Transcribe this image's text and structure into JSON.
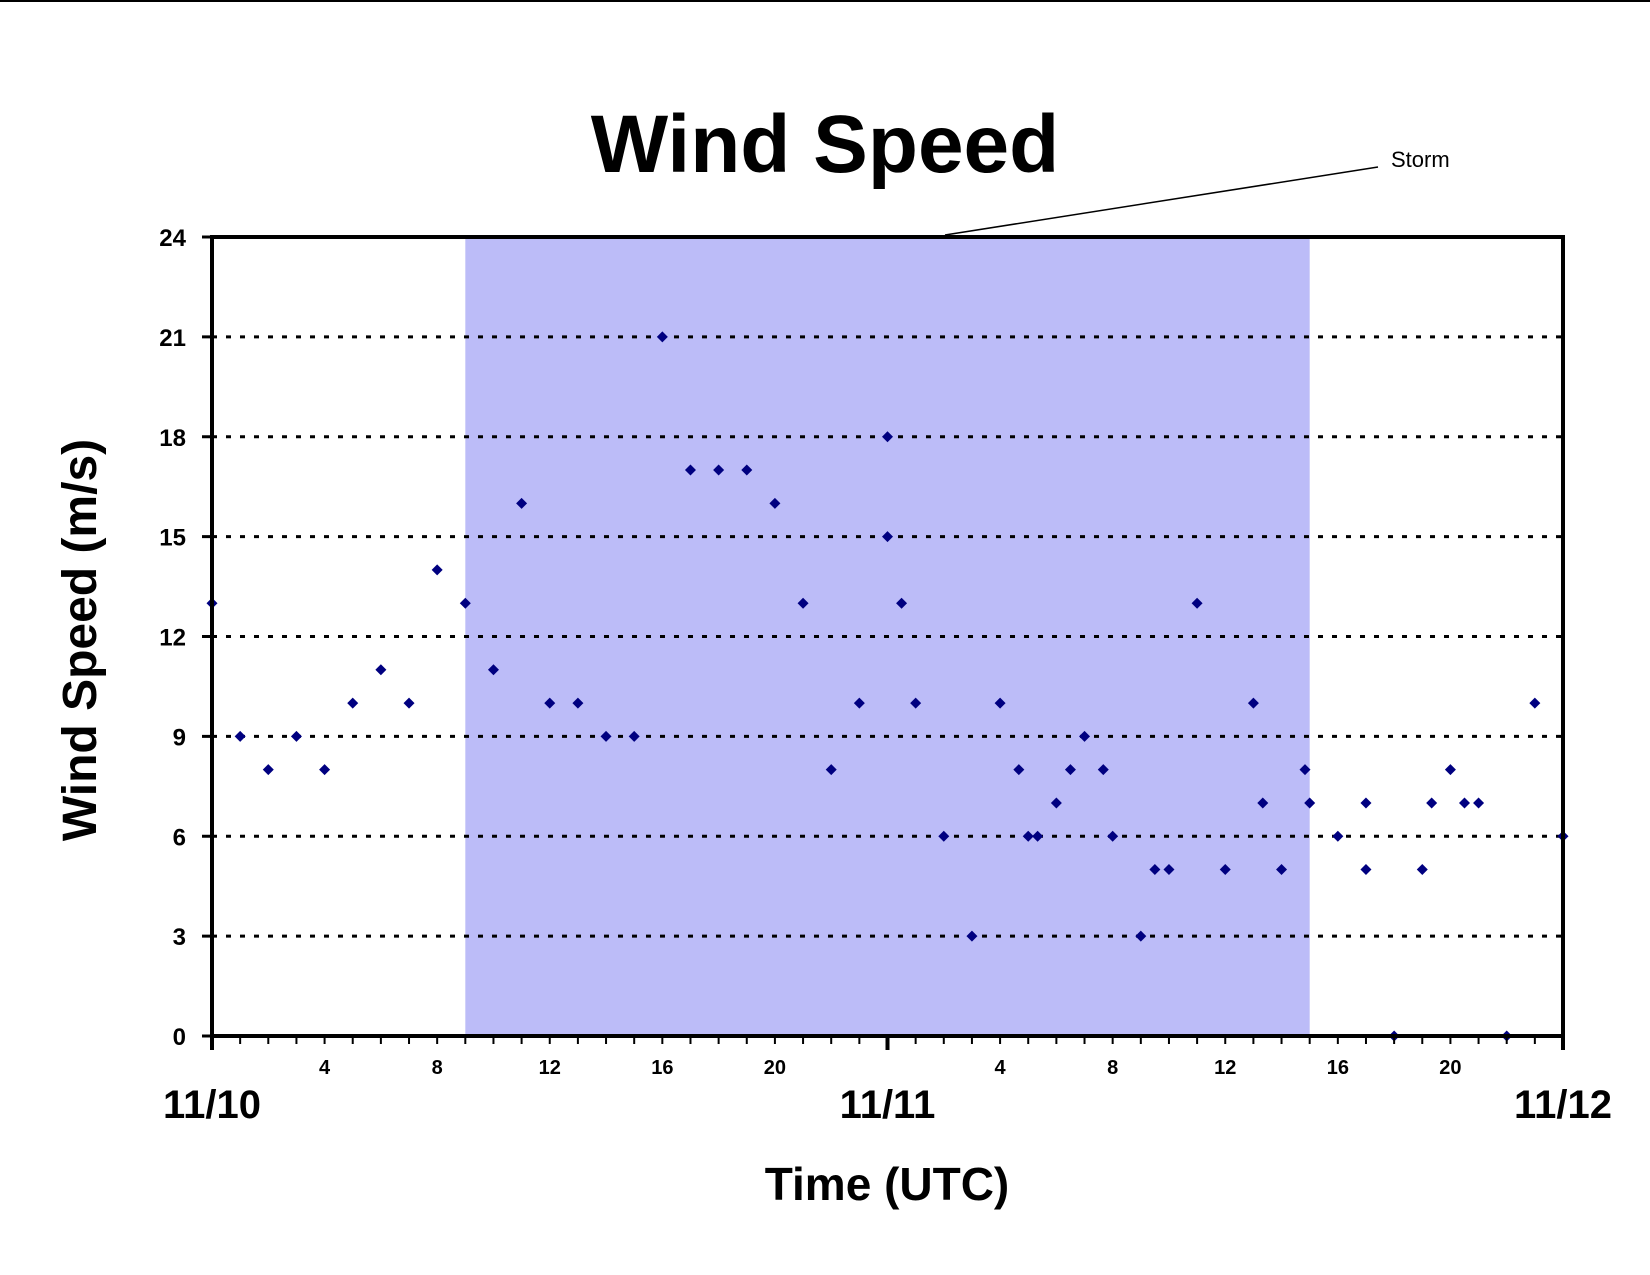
{
  "chart_data": {
    "type": "scatter",
    "title": "Wind Speed",
    "xlabel": "Time (UTC)",
    "ylabel": "Wind Speed (m/s)",
    "ylim": [
      0,
      24
    ],
    "yticks": [
      0,
      3,
      6,
      9,
      12,
      15,
      18,
      21,
      24
    ],
    "xlim": [
      "11/10 00:00",
      "11/12 00:00"
    ],
    "xtick_hours": [
      "4",
      "8",
      "12",
      "16",
      "20",
      "4",
      "8",
      "12",
      "16",
      "20"
    ],
    "day_labels": [
      "11/10",
      "11/11",
      "11/12"
    ],
    "grid": "horizontal dotted",
    "marker_color": "#000080",
    "annotation": {
      "text": "Storm",
      "start": "11/10 09:00",
      "end": "11/11 15:00",
      "color": "#bcbcf8"
    },
    "series": [
      {
        "points": [
          [
            "11/10 00:00",
            13
          ],
          [
            "11/10 01:00",
            9
          ],
          [
            "11/10 02:00",
            8
          ],
          [
            "11/10 03:00",
            9
          ],
          [
            "11/10 04:00",
            8
          ],
          [
            "11/10 05:00",
            10
          ],
          [
            "11/10 06:00",
            11
          ],
          [
            "11/10 07:00",
            10
          ],
          [
            "11/10 08:00",
            14
          ],
          [
            "11/10 09:00",
            13
          ],
          [
            "11/10 10:00",
            11
          ],
          [
            "11/10 11:00",
            16
          ],
          [
            "11/10 12:00",
            10
          ],
          [
            "11/10 13:00",
            10
          ],
          [
            "11/10 14:00",
            9
          ],
          [
            "11/10 15:00",
            9
          ],
          [
            "11/10 16:00",
            21
          ],
          [
            "11/10 17:00",
            17
          ],
          [
            "11/10 18:00",
            17
          ],
          [
            "11/10 19:00",
            17
          ],
          [
            "11/10 20:00",
            16
          ],
          [
            "11/10 21:00",
            13
          ],
          [
            "11/10 22:00",
            8
          ],
          [
            "11/10 23:00",
            10
          ],
          [
            "11/11 00:00",
            18
          ],
          [
            "11/11 00:00",
            15
          ],
          [
            "11/11 00:30",
            13
          ],
          [
            "11/11 01:00",
            10
          ],
          [
            "11/11 02:00",
            6
          ],
          [
            "11/11 03:00",
            3
          ],
          [
            "11/11 04:00",
            10
          ],
          [
            "11/11 04:40",
            8
          ],
          [
            "11/11 05:00",
            6
          ],
          [
            "11/11 05:20",
            6
          ],
          [
            "11/11 06:00",
            7
          ],
          [
            "11/11 06:30",
            8
          ],
          [
            "11/11 07:00",
            9
          ],
          [
            "11/11 07:40",
            8
          ],
          [
            "11/11 08:00",
            6
          ],
          [
            "11/11 09:00",
            3
          ],
          [
            "11/11 09:30",
            5
          ],
          [
            "11/11 10:00",
            5
          ],
          [
            "11/11 11:00",
            13
          ],
          [
            "11/11 12:00",
            5
          ],
          [
            "11/11 13:00",
            10
          ],
          [
            "11/11 13:20",
            7
          ],
          [
            "11/11 14:00",
            5
          ],
          [
            "11/11 14:50",
            8
          ],
          [
            "11/11 15:00",
            7
          ],
          [
            "11/11 16:00",
            6
          ],
          [
            "11/11 17:00",
            7
          ],
          [
            "11/11 17:00",
            5
          ],
          [
            "11/11 18:00",
            0
          ],
          [
            "11/11 19:00",
            5
          ],
          [
            "11/11 19:20",
            7
          ],
          [
            "11/11 20:00",
            8
          ],
          [
            "11/11 20:30",
            7
          ],
          [
            "11/11 21:00",
            7
          ],
          [
            "11/11 22:00",
            0
          ],
          [
            "11/11 23:00",
            10
          ],
          [
            "11/12 00:00",
            6
          ]
        ]
      }
    ]
  }
}
